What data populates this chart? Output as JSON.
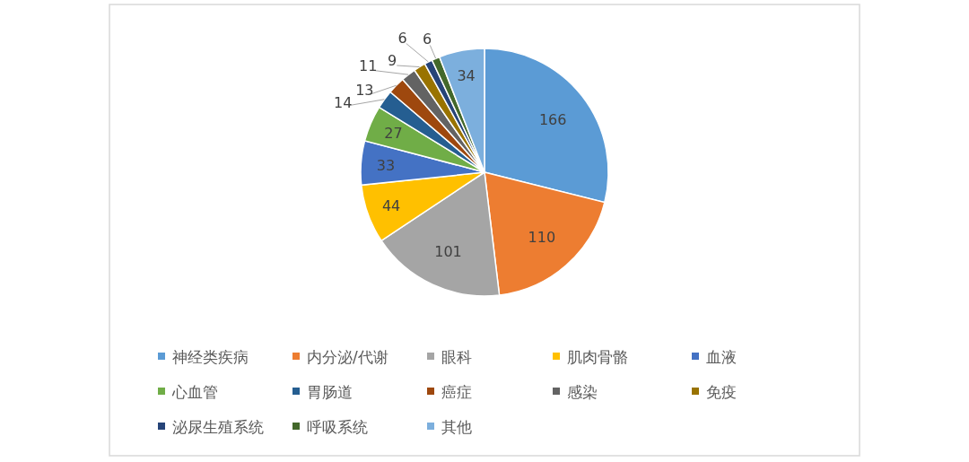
{
  "chart_data": {
    "type": "pie",
    "categories": [
      "神经类疾病",
      "内分泌/代谢",
      "眼科",
      "肌肉骨骼",
      "血液",
      "心血管",
      "胃肠道",
      "癌症",
      "感染",
      "免疫",
      "泌尿生殖系统",
      "呼吸系统",
      "其他"
    ],
    "values": [
      166,
      110,
      101,
      44,
      33,
      27,
      14,
      13,
      11,
      9,
      6,
      6,
      34
    ],
    "colors": [
      "#5b9bd5",
      "#ed7d31",
      "#a5a5a5",
      "#ffc000",
      "#4472c4",
      "#70ad47",
      "#255e91",
      "#9e480e",
      "#636363",
      "#997300",
      "#264478",
      "#43682b",
      "#7cafdd"
    ],
    "data_labels": true,
    "legend": "bottom"
  }
}
